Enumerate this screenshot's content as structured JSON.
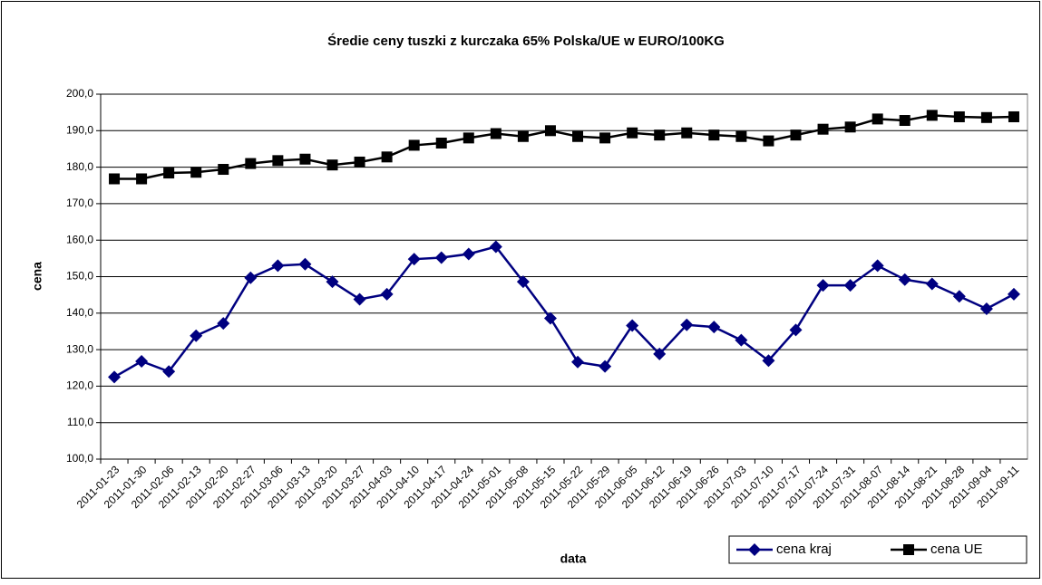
{
  "chart_data": {
    "type": "line",
    "title": "Średie ceny tuszki z kurczaka 65% Polska/UE w EURO/100KG",
    "x_label": "data",
    "y_label": "cena",
    "categories": [
      "2011-01-23",
      "2011-01-30",
      "2011-02-06",
      "2011-02-13",
      "2011-02-20",
      "2011-02-27",
      "2011-03-06",
      "2011-03-13",
      "2011-03-20",
      "2011-03-27",
      "2011-04-03",
      "2011-04-10",
      "2011-04-17",
      "2011-04-24",
      "2011-05-01",
      "2011-05-08",
      "2011-05-15",
      "2011-05-22",
      "2011-05-29",
      "2011-06-05",
      "2011-06-12",
      "2011-06-19",
      "2011-06-26",
      "2011-07-03",
      "2011-07-10",
      "2011-07-17",
      "2011-07-24",
      "2011-07-31",
      "2011-08-07",
      "2011-08-14",
      "2011-08-21",
      "2011-08-28",
      "2011-09-04",
      "2011-09-11"
    ],
    "series": [
      {
        "name": "cena kraj",
        "color": "#000080",
        "marker": "diamond",
        "values": [
          122.5,
          126.8,
          124,
          133.8,
          137.2,
          149.7,
          153,
          153.4,
          148.6,
          143.8,
          145.2,
          154.8,
          155.2,
          156.2,
          158.2,
          148.6,
          138.6,
          126.6,
          125.4,
          136.6,
          128.8,
          136.8,
          136.2,
          132.6,
          127,
          135.4,
          147.6,
          147.6,
          153,
          149.2,
          148,
          144.6,
          141.2,
          145.2
        ]
      },
      {
        "name": "cena UE",
        "color": "#000000",
        "marker": "square",
        "values": [
          176.8,
          176.8,
          178.4,
          178.6,
          179.4,
          181,
          181.8,
          182.2,
          180.6,
          181.4,
          182.8,
          186,
          186.6,
          188,
          189.2,
          188.4,
          190,
          188.4,
          188,
          189.4,
          188.8,
          189.4,
          188.8,
          188.4,
          187.2,
          188.8,
          190.4,
          191,
          193.2,
          192.8,
          194.2,
          193.8,
          193.6,
          193.8
        ]
      }
    ],
    "ylim": [
      100,
      200
    ],
    "yticks": [
      {
        "value": 100,
        "label": "100,0"
      },
      {
        "value": 110,
        "label": "110,0"
      },
      {
        "value": 120,
        "label": "120,0"
      },
      {
        "value": 130,
        "label": "130,0"
      },
      {
        "value": 140,
        "label": "140,0"
      },
      {
        "value": 150,
        "label": "150,0"
      },
      {
        "value": 160,
        "label": "160,0"
      },
      {
        "value": 170,
        "label": "170,0"
      },
      {
        "value": 180,
        "label": "180,0"
      },
      {
        "value": 190,
        "label": "190,0"
      },
      {
        "value": 200,
        "label": "200,0"
      }
    ],
    "grid": true,
    "legend": "bottom-right"
  }
}
